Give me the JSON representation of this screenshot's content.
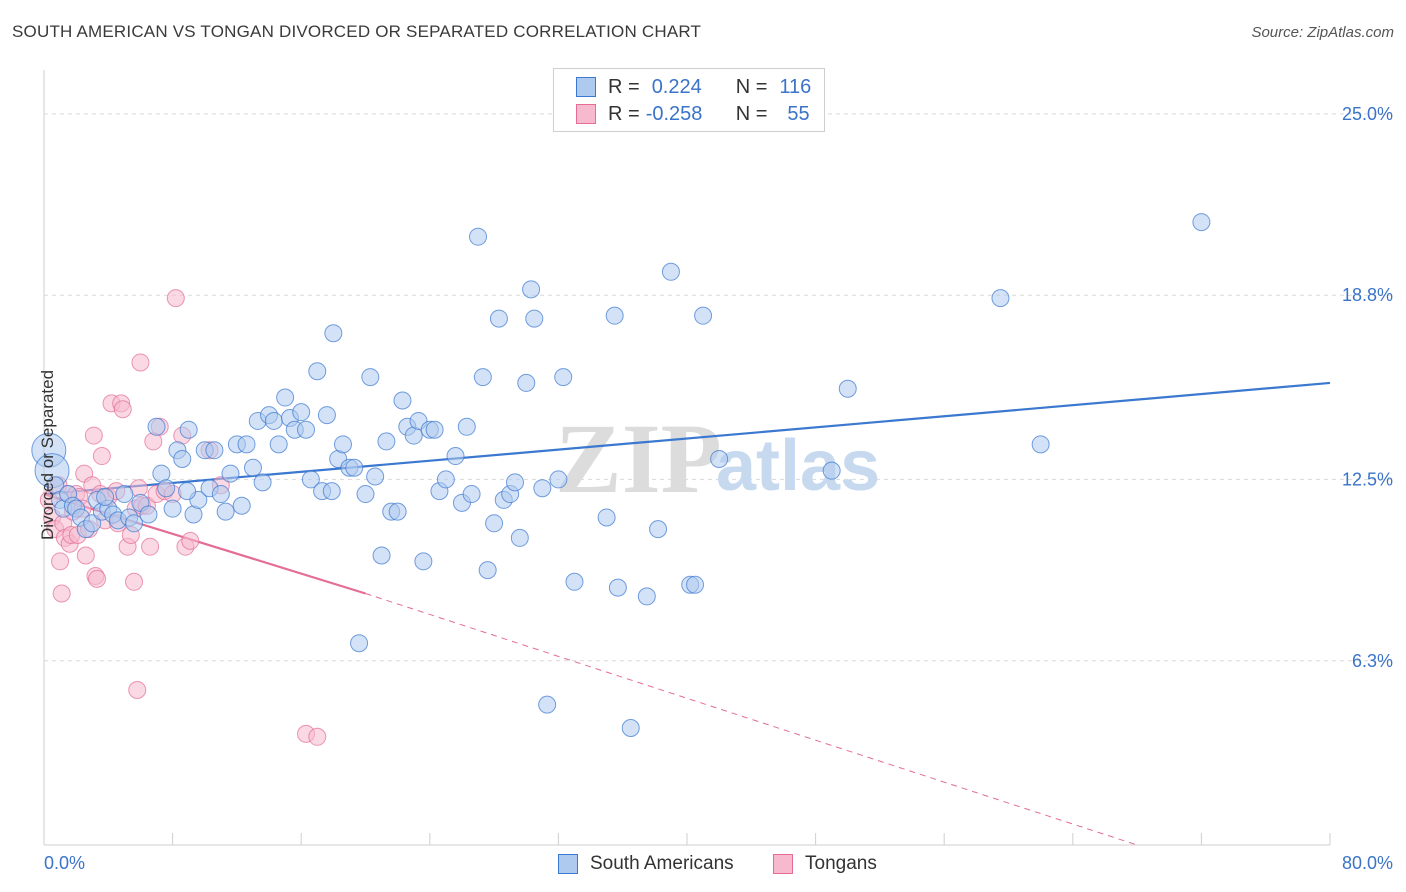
{
  "title": "SOUTH AMERICAN VS TONGAN DIVORCED OR SEPARATED CORRELATION CHART",
  "source": "Source: ZipAtlas.com",
  "watermark": {
    "zip": "ZIP",
    "atlas": "atlas"
  },
  "legend_top": {
    "rows": [
      {
        "r_label": "R =",
        "r_value": "0.224",
        "n_label": "N =",
        "n_value": "116"
      },
      {
        "r_label": "R =",
        "r_value": "-0.258",
        "n_label": "N =",
        "n_value": "55"
      }
    ]
  },
  "colors": {
    "blue": "#3b78d0",
    "blue_fill": "#aecbef",
    "pink": "#e46c96",
    "pink_fill": "#f6b9cd",
    "tick_label": "#3a73c8",
    "grid": "#d9d9d9"
  },
  "chart_data": {
    "type": "scatter",
    "title": "SOUTH AMERICAN VS TONGAN DIVORCED OR SEPARATED CORRELATION CHART",
    "xlabel": "",
    "ylabel": "Divorced or Separated",
    "xlim": [
      0,
      80
    ],
    "ylim": [
      0,
      26.5
    ],
    "x_tick_labels": [
      "0.0%",
      "80.0%"
    ],
    "y_ticks": [
      6.3,
      12.5,
      18.8,
      25.0
    ],
    "y_tick_labels": [
      "6.3%",
      "12.5%",
      "18.8%",
      "25.0%"
    ],
    "series": [
      {
        "name": "South Americans",
        "color": "#3b78d0",
        "trend": {
          "x": [
            0,
            80
          ],
          "y": [
            12.0,
            15.8
          ],
          "dashed_after": null
        },
        "points": [
          [
            0.3,
            13.5
          ],
          [
            0.5,
            12.8
          ],
          [
            0.7,
            12.3
          ],
          [
            1.0,
            11.8
          ],
          [
            1.2,
            11.5
          ],
          [
            1.5,
            12.0
          ],
          [
            1.8,
            11.6
          ],
          [
            2.0,
            11.5
          ],
          [
            2.3,
            11.2
          ],
          [
            2.6,
            10.8
          ],
          [
            3.0,
            11.0
          ],
          [
            3.3,
            11.8
          ],
          [
            3.6,
            11.4
          ],
          [
            4.0,
            11.5
          ],
          [
            4.3,
            11.3
          ],
          [
            4.6,
            11.1
          ],
          [
            5.0,
            12.0
          ],
          [
            5.3,
            11.2
          ],
          [
            5.6,
            11.0
          ],
          [
            6.0,
            11.7
          ],
          [
            6.5,
            11.3
          ],
          [
            7.0,
            14.3
          ],
          [
            7.3,
            12.7
          ],
          [
            7.6,
            12.2
          ],
          [
            8.0,
            11.5
          ],
          [
            8.3,
            13.5
          ],
          [
            8.6,
            13.2
          ],
          [
            9.0,
            14.2
          ],
          [
            9.3,
            11.3
          ],
          [
            9.6,
            11.8
          ],
          [
            10.0,
            13.5
          ],
          [
            10.3,
            12.2
          ],
          [
            10.6,
            13.5
          ],
          [
            11.0,
            12.0
          ],
          [
            11.3,
            11.4
          ],
          [
            11.6,
            12.7
          ],
          [
            12.0,
            13.7
          ],
          [
            12.3,
            11.6
          ],
          [
            12.6,
            13.7
          ],
          [
            13.0,
            12.9
          ],
          [
            13.3,
            14.5
          ],
          [
            13.6,
            12.4
          ],
          [
            14.0,
            14.7
          ],
          [
            14.3,
            14.5
          ],
          [
            14.6,
            13.7
          ],
          [
            15.0,
            15.3
          ],
          [
            15.3,
            14.6
          ],
          [
            15.6,
            14.2
          ],
          [
            16.0,
            14.8
          ],
          [
            16.3,
            14.2
          ],
          [
            16.6,
            12.5
          ],
          [
            17.0,
            16.2
          ],
          [
            17.3,
            12.1
          ],
          [
            17.6,
            14.7
          ],
          [
            18.0,
            17.5
          ],
          [
            18.3,
            13.2
          ],
          [
            18.6,
            13.7
          ],
          [
            19.0,
            12.9
          ],
          [
            19.3,
            12.9
          ],
          [
            19.6,
            6.9
          ],
          [
            20.0,
            12.0
          ],
          [
            20.3,
            16.0
          ],
          [
            20.6,
            12.6
          ],
          [
            21.0,
            9.9
          ],
          [
            21.3,
            13.8
          ],
          [
            21.6,
            11.4
          ],
          [
            22.0,
            11.4
          ],
          [
            22.3,
            15.2
          ],
          [
            22.6,
            14.3
          ],
          [
            23.0,
            14.0
          ],
          [
            23.3,
            14.5
          ],
          [
            23.6,
            9.7
          ],
          [
            24.0,
            14.2
          ],
          [
            24.3,
            14.2
          ],
          [
            24.6,
            12.1
          ],
          [
            25.0,
            12.5
          ],
          [
            25.6,
            13.3
          ],
          [
            26.0,
            11.7
          ],
          [
            26.3,
            14.3
          ],
          [
            26.6,
            12.0
          ],
          [
            27.0,
            20.8
          ],
          [
            27.3,
            16.0
          ],
          [
            27.6,
            9.4
          ],
          [
            28.0,
            11.0
          ],
          [
            28.3,
            18.0
          ],
          [
            28.6,
            11.8
          ],
          [
            29.0,
            12.0
          ],
          [
            29.3,
            12.4
          ],
          [
            29.6,
            10.5
          ],
          [
            30.0,
            15.8
          ],
          [
            30.3,
            19.0
          ],
          [
            30.5,
            18.0
          ],
          [
            31.0,
            12.2
          ],
          [
            31.3,
            4.8
          ],
          [
            32.0,
            12.5
          ],
          [
            32.3,
            16.0
          ],
          [
            33.0,
            9.0
          ],
          [
            35.0,
            11.2
          ],
          [
            35.5,
            18.1
          ],
          [
            35.7,
            8.8
          ],
          [
            36.5,
            4.0
          ],
          [
            37.5,
            8.5
          ],
          [
            38.2,
            10.8
          ],
          [
            39.0,
            19.6
          ],
          [
            40.2,
            8.9
          ],
          [
            40.5,
            8.9
          ],
          [
            41.0,
            18.1
          ],
          [
            42.0,
            13.2
          ],
          [
            49.0,
            12.8
          ],
          [
            50.0,
            15.6
          ],
          [
            59.5,
            18.7
          ],
          [
            62.0,
            13.7
          ],
          [
            72.0,
            21.3
          ],
          [
            3.8,
            11.9
          ],
          [
            8.9,
            12.1
          ],
          [
            17.9,
            12.1
          ]
        ]
      },
      {
        "name": "Tongans",
        "color": "#e46c96",
        "trend": {
          "x": [
            0,
            20,
            68
          ],
          "y": [
            12.0,
            8.6,
            0.0
          ],
          "dashed_after": 20
        },
        "points": [
          [
            0.3,
            11.8
          ],
          [
            0.5,
            11.2
          ],
          [
            0.7,
            10.8
          ],
          [
            0.9,
            12.3
          ],
          [
            1.0,
            9.7
          ],
          [
            1.1,
            8.6
          ],
          [
            1.2,
            11.0
          ],
          [
            1.3,
            10.5
          ],
          [
            1.5,
            12.0
          ],
          [
            1.6,
            10.3
          ],
          [
            1.7,
            10.6
          ],
          [
            1.8,
            11.4
          ],
          [
            2.0,
            12.0
          ],
          [
            2.1,
            10.6
          ],
          [
            2.2,
            11.9
          ],
          [
            2.4,
            11.5
          ],
          [
            2.5,
            12.7
          ],
          [
            2.6,
            9.9
          ],
          [
            2.8,
            10.8
          ],
          [
            3.0,
            12.3
          ],
          [
            3.1,
            14.0
          ],
          [
            3.2,
            9.2
          ],
          [
            3.3,
            9.1
          ],
          [
            3.5,
            12.0
          ],
          [
            3.6,
            13.3
          ],
          [
            3.8,
            11.1
          ],
          [
            4.0,
            11.9
          ],
          [
            4.2,
            15.1
          ],
          [
            4.5,
            12.1
          ],
          [
            4.6,
            11.0
          ],
          [
            4.8,
            15.1
          ],
          [
            4.9,
            14.9
          ],
          [
            5.2,
            10.2
          ],
          [
            5.4,
            10.6
          ],
          [
            5.6,
            9.0
          ],
          [
            5.7,
            11.5
          ],
          [
            5.9,
            12.2
          ],
          [
            6.1,
            11.6
          ],
          [
            6.4,
            11.6
          ],
          [
            6.6,
            10.2
          ],
          [
            6.8,
            13.8
          ],
          [
            7.0,
            12.0
          ],
          [
            7.2,
            14.3
          ],
          [
            7.5,
            12.1
          ],
          [
            8.0,
            12.0
          ],
          [
            8.2,
            18.7
          ],
          [
            8.6,
            14.0
          ],
          [
            8.8,
            10.2
          ],
          [
            9.1,
            10.4
          ],
          [
            10.3,
            13.5
          ],
          [
            11.0,
            12.3
          ],
          [
            6.0,
            16.5
          ],
          [
            5.8,
            5.3
          ],
          [
            16.3,
            3.8
          ],
          [
            17.0,
            3.7
          ]
        ]
      }
    ]
  },
  "bottom_legend": [
    {
      "label": "South Americans"
    },
    {
      "label": "Tongans"
    }
  ]
}
